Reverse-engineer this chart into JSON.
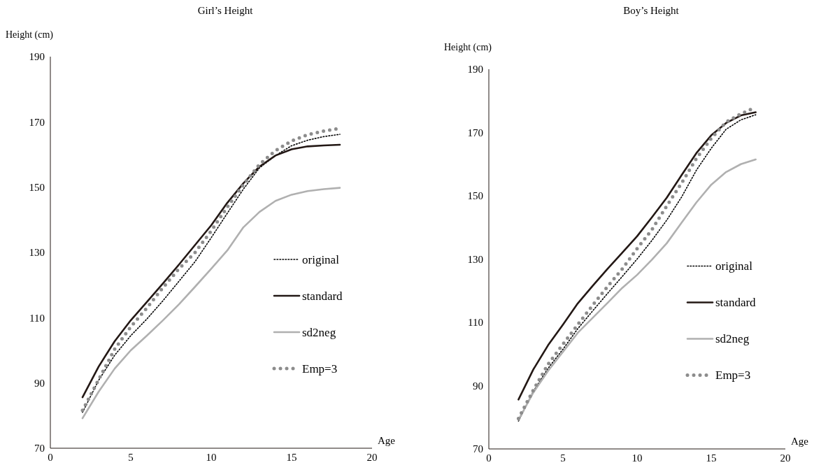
{
  "chart_data": [
    {
      "type": "line",
      "title": "Girl’s Height",
      "xlabel": "Age",
      "ylabel": "Height (cm)",
      "x": [
        2,
        3,
        4,
        5,
        6,
        7,
        8,
        9,
        10,
        11,
        12,
        13,
        14,
        15,
        16,
        17,
        18
      ],
      "xlim": [
        0,
        20
      ],
      "xticks": [
        0,
        5,
        10,
        15,
        20
      ],
      "ylim": [
        70,
        190
      ],
      "yticks": [
        70,
        90,
        110,
        130,
        150,
        170,
        190
      ],
      "grid": false,
      "legend": "right",
      "series": [
        {
          "name": "original",
          "color": "#000000",
          "line_style": "dotted",
          "values": [
            81,
            90.8,
            98.5,
            104.5,
            109.6,
            115.2,
            121.2,
            127.2,
            134.5,
            142,
            149.4,
            155.9,
            159.7,
            162.7,
            164.4,
            165.5,
            166.2
          ]
        },
        {
          "name": "standard",
          "color": "#231815",
          "line_style": "solid",
          "values": [
            85.6,
            95,
            102.8,
            109.2,
            114.8,
            120.5,
            126.3,
            132.3,
            138.3,
            145.2,
            151.2,
            156.3,
            159.7,
            161.6,
            162.5,
            162.8,
            163
          ]
        },
        {
          "name": "sd2neg",
          "color": "#b0b0b0",
          "line_style": "solid",
          "values": [
            79.2,
            87.3,
            94.4,
            100,
            104.5,
            109.2,
            114.1,
            119.5,
            125,
            130.6,
            137.7,
            142.4,
            145.8,
            147.7,
            148.8,
            149.4,
            149.8
          ]
        },
        {
          "name": "Emp=3",
          "color": "#8c8c8c",
          "line_style": "dotted",
          "values": [
            81.6,
            91,
            100.4,
            107.2,
            113,
            119.2,
            125,
            130,
            136.6,
            143.9,
            150.7,
            157,
            161.2,
            164.2,
            166.1,
            167.2,
            168
          ]
        }
      ]
    },
    {
      "type": "line",
      "title": "Boy’s Height",
      "xlabel": "Age",
      "ylabel": "Height (cm)",
      "x": [
        2,
        3,
        4,
        5,
        6,
        7,
        8,
        9,
        10,
        11,
        12,
        13,
        14,
        15,
        16,
        17,
        18
      ],
      "xlim": [
        0,
        20
      ],
      "xticks": [
        0,
        5,
        10,
        15,
        20
      ],
      "ylim": [
        70,
        190
      ],
      "yticks": [
        70,
        90,
        110,
        130,
        150,
        170,
        190
      ],
      "grid": false,
      "legend": "right",
      "series": [
        {
          "name": "original",
          "color": "#000000",
          "line_style": "dotted",
          "values": [
            78.8,
            88.2,
            95.5,
            101.5,
            108,
            113.6,
            119.1,
            124.5,
            130,
            135.9,
            142.3,
            149.6,
            158.1,
            165,
            171,
            174,
            175.6
          ]
        },
        {
          "name": "standard",
          "color": "#231815",
          "line_style": "solid",
          "values": [
            85.6,
            95.1,
            102.8,
            109.3,
            116,
            121.5,
            126.9,
            132,
            137.2,
            143.2,
            149.4,
            156.5,
            163.5,
            169.1,
            173,
            175.4,
            176.4
          ]
        },
        {
          "name": "sd2neg",
          "color": "#b0b0b0",
          "line_style": "solid",
          "values": [
            79.2,
            87.8,
            94.7,
            100.7,
            106.7,
            111.4,
            116.1,
            120.9,
            125,
            129.8,
            135,
            141.5,
            147.9,
            153.5,
            157.5,
            160,
            161.5
          ]
        },
        {
          "name": "Emp=3",
          "color": "#8c8c8c",
          "line_style": "dotted",
          "values": [
            79.6,
            88.6,
            96.8,
            103.1,
            109.3,
            115.4,
            121.3,
            126.9,
            133.3,
            139.3,
            146.8,
            154,
            161.8,
            168.1,
            173.3,
            175.9,
            178
          ]
        }
      ]
    }
  ]
}
